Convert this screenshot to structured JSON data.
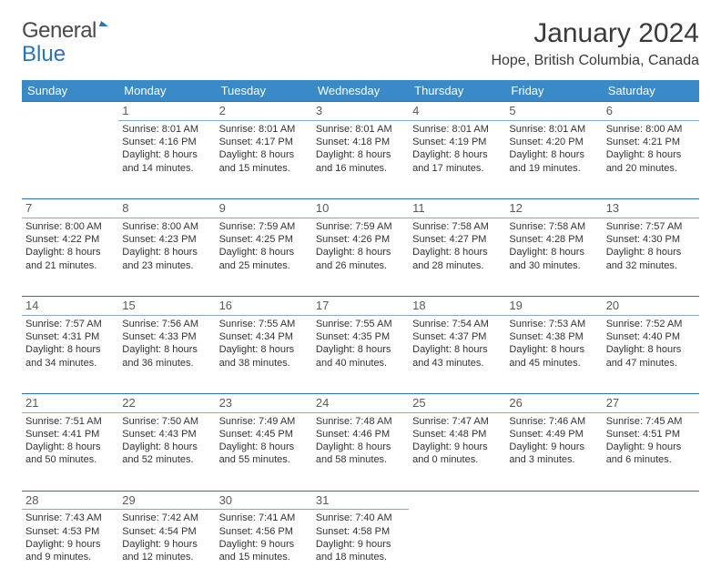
{
  "logo": {
    "word1": "General",
    "word2": "Blue"
  },
  "title": "January 2024",
  "location": "Hope, British Columbia, Canada",
  "colors": {
    "header_bg": "#3a8ac8",
    "header_text": "#ffffff",
    "rule_top": "#2a74b8",
    "rule_bottom": "#8aa9c4",
    "text": "#333333",
    "background": "#ffffff"
  },
  "day_headers": [
    "Sunday",
    "Monday",
    "Tuesday",
    "Wednesday",
    "Thursday",
    "Friday",
    "Saturday"
  ],
  "weeks": [
    [
      null,
      {
        "n": "1",
        "sr": "Sunrise: 8:01 AM",
        "ss": "Sunset: 4:16 PM",
        "d1": "Daylight: 8 hours",
        "d2": "and 14 minutes."
      },
      {
        "n": "2",
        "sr": "Sunrise: 8:01 AM",
        "ss": "Sunset: 4:17 PM",
        "d1": "Daylight: 8 hours",
        "d2": "and 15 minutes."
      },
      {
        "n": "3",
        "sr": "Sunrise: 8:01 AM",
        "ss": "Sunset: 4:18 PM",
        "d1": "Daylight: 8 hours",
        "d2": "and 16 minutes."
      },
      {
        "n": "4",
        "sr": "Sunrise: 8:01 AM",
        "ss": "Sunset: 4:19 PM",
        "d1": "Daylight: 8 hours",
        "d2": "and 17 minutes."
      },
      {
        "n": "5",
        "sr": "Sunrise: 8:01 AM",
        "ss": "Sunset: 4:20 PM",
        "d1": "Daylight: 8 hours",
        "d2": "and 19 minutes."
      },
      {
        "n": "6",
        "sr": "Sunrise: 8:00 AM",
        "ss": "Sunset: 4:21 PM",
        "d1": "Daylight: 8 hours",
        "d2": "and 20 minutes."
      }
    ],
    [
      {
        "n": "7",
        "sr": "Sunrise: 8:00 AM",
        "ss": "Sunset: 4:22 PM",
        "d1": "Daylight: 8 hours",
        "d2": "and 21 minutes."
      },
      {
        "n": "8",
        "sr": "Sunrise: 8:00 AM",
        "ss": "Sunset: 4:23 PM",
        "d1": "Daylight: 8 hours",
        "d2": "and 23 minutes."
      },
      {
        "n": "9",
        "sr": "Sunrise: 7:59 AM",
        "ss": "Sunset: 4:25 PM",
        "d1": "Daylight: 8 hours",
        "d2": "and 25 minutes."
      },
      {
        "n": "10",
        "sr": "Sunrise: 7:59 AM",
        "ss": "Sunset: 4:26 PM",
        "d1": "Daylight: 8 hours",
        "d2": "and 26 minutes."
      },
      {
        "n": "11",
        "sr": "Sunrise: 7:58 AM",
        "ss": "Sunset: 4:27 PM",
        "d1": "Daylight: 8 hours",
        "d2": "and 28 minutes."
      },
      {
        "n": "12",
        "sr": "Sunrise: 7:58 AM",
        "ss": "Sunset: 4:28 PM",
        "d1": "Daylight: 8 hours",
        "d2": "and 30 minutes."
      },
      {
        "n": "13",
        "sr": "Sunrise: 7:57 AM",
        "ss": "Sunset: 4:30 PM",
        "d1": "Daylight: 8 hours",
        "d2": "and 32 minutes."
      }
    ],
    [
      {
        "n": "14",
        "sr": "Sunrise: 7:57 AM",
        "ss": "Sunset: 4:31 PM",
        "d1": "Daylight: 8 hours",
        "d2": "and 34 minutes."
      },
      {
        "n": "15",
        "sr": "Sunrise: 7:56 AM",
        "ss": "Sunset: 4:33 PM",
        "d1": "Daylight: 8 hours",
        "d2": "and 36 minutes."
      },
      {
        "n": "16",
        "sr": "Sunrise: 7:55 AM",
        "ss": "Sunset: 4:34 PM",
        "d1": "Daylight: 8 hours",
        "d2": "and 38 minutes."
      },
      {
        "n": "17",
        "sr": "Sunrise: 7:55 AM",
        "ss": "Sunset: 4:35 PM",
        "d1": "Daylight: 8 hours",
        "d2": "and 40 minutes."
      },
      {
        "n": "18",
        "sr": "Sunrise: 7:54 AM",
        "ss": "Sunset: 4:37 PM",
        "d1": "Daylight: 8 hours",
        "d2": "and 43 minutes."
      },
      {
        "n": "19",
        "sr": "Sunrise: 7:53 AM",
        "ss": "Sunset: 4:38 PM",
        "d1": "Daylight: 8 hours",
        "d2": "and 45 minutes."
      },
      {
        "n": "20",
        "sr": "Sunrise: 7:52 AM",
        "ss": "Sunset: 4:40 PM",
        "d1": "Daylight: 8 hours",
        "d2": "and 47 minutes."
      }
    ],
    [
      {
        "n": "21",
        "sr": "Sunrise: 7:51 AM",
        "ss": "Sunset: 4:41 PM",
        "d1": "Daylight: 8 hours",
        "d2": "and 50 minutes."
      },
      {
        "n": "22",
        "sr": "Sunrise: 7:50 AM",
        "ss": "Sunset: 4:43 PM",
        "d1": "Daylight: 8 hours",
        "d2": "and 52 minutes."
      },
      {
        "n": "23",
        "sr": "Sunrise: 7:49 AM",
        "ss": "Sunset: 4:45 PM",
        "d1": "Daylight: 8 hours",
        "d2": "and 55 minutes."
      },
      {
        "n": "24",
        "sr": "Sunrise: 7:48 AM",
        "ss": "Sunset: 4:46 PM",
        "d1": "Daylight: 8 hours",
        "d2": "and 58 minutes."
      },
      {
        "n": "25",
        "sr": "Sunrise: 7:47 AM",
        "ss": "Sunset: 4:48 PM",
        "d1": "Daylight: 9 hours",
        "d2": "and 0 minutes."
      },
      {
        "n": "26",
        "sr": "Sunrise: 7:46 AM",
        "ss": "Sunset: 4:49 PM",
        "d1": "Daylight: 9 hours",
        "d2": "and 3 minutes."
      },
      {
        "n": "27",
        "sr": "Sunrise: 7:45 AM",
        "ss": "Sunset: 4:51 PM",
        "d1": "Daylight: 9 hours",
        "d2": "and 6 minutes."
      }
    ],
    [
      {
        "n": "28",
        "sr": "Sunrise: 7:43 AM",
        "ss": "Sunset: 4:53 PM",
        "d1": "Daylight: 9 hours",
        "d2": "and 9 minutes."
      },
      {
        "n": "29",
        "sr": "Sunrise: 7:42 AM",
        "ss": "Sunset: 4:54 PM",
        "d1": "Daylight: 9 hours",
        "d2": "and 12 minutes."
      },
      {
        "n": "30",
        "sr": "Sunrise: 7:41 AM",
        "ss": "Sunset: 4:56 PM",
        "d1": "Daylight: 9 hours",
        "d2": "and 15 minutes."
      },
      {
        "n": "31",
        "sr": "Sunrise: 7:40 AM",
        "ss": "Sunset: 4:58 PM",
        "d1": "Daylight: 9 hours",
        "d2": "and 18 minutes."
      },
      null,
      null,
      null
    ]
  ]
}
